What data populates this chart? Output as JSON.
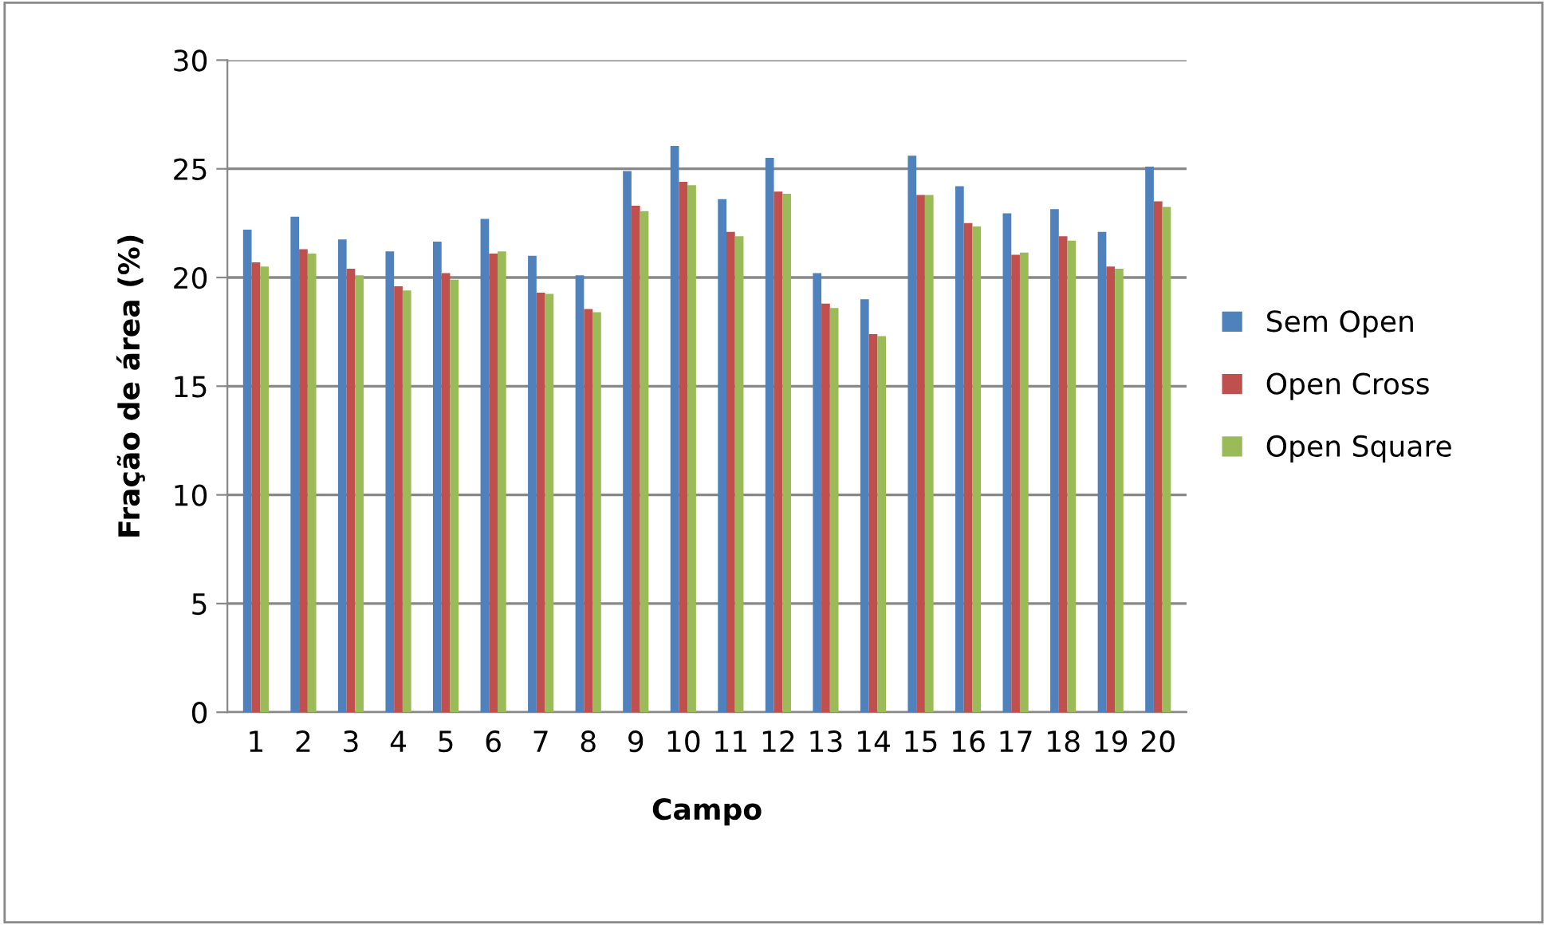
{
  "chart_data": {
    "type": "bar",
    "xlabel": "Campo",
    "ylabel": "Fração de área (%)",
    "categories": [
      "1",
      "2",
      "3",
      "4",
      "5",
      "6",
      "7",
      "8",
      "9",
      "10",
      "11",
      "12",
      "13",
      "14",
      "15",
      "16",
      "17",
      "18",
      "19",
      "20"
    ],
    "series": [
      {
        "name": "Sem Open",
        "color": "#4f81bd",
        "values": [
          22.2,
          22.8,
          21.75,
          21.2,
          21.65,
          22.7,
          21.0,
          20.1,
          24.9,
          26.05,
          23.6,
          25.5,
          20.2,
          19.0,
          25.6,
          24.2,
          22.95,
          23.15,
          22.1,
          25.1
        ]
      },
      {
        "name": "Open Cross",
        "color": "#c0504d",
        "values": [
          20.7,
          21.3,
          20.4,
          19.6,
          20.2,
          21.1,
          19.3,
          18.55,
          23.3,
          24.4,
          22.1,
          23.95,
          18.8,
          17.4,
          23.8,
          22.5,
          21.05,
          21.9,
          20.5,
          23.5
        ]
      },
      {
        "name": "Open Square",
        "color": "#9bbb59",
        "values": [
          20.5,
          21.1,
          20.1,
          19.4,
          19.9,
          21.2,
          19.25,
          18.4,
          23.05,
          24.25,
          21.9,
          23.85,
          18.6,
          17.3,
          23.8,
          22.35,
          21.15,
          21.7,
          20.4,
          23.25
        ]
      }
    ],
    "ylim": [
      0,
      30
    ],
    "yticks": [
      0,
      5,
      10,
      15,
      20,
      25,
      30
    ],
    "grid": "y",
    "legend": "right"
  }
}
